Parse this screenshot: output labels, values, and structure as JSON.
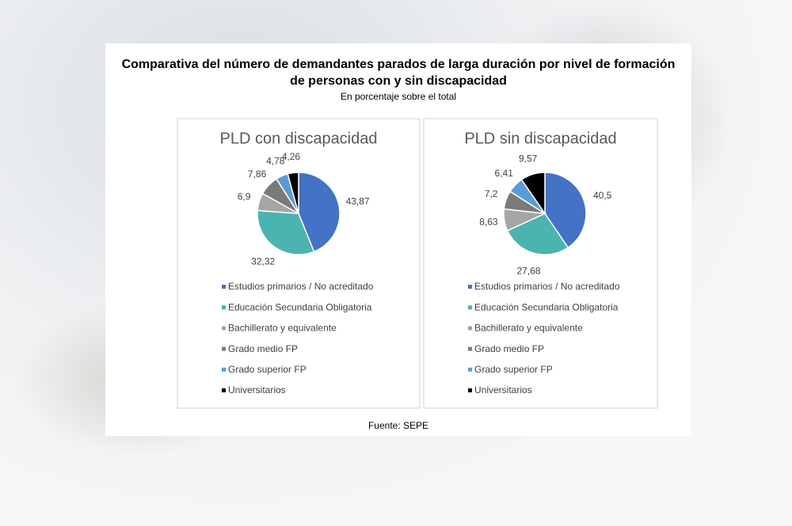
{
  "title": "Comparativa del número de demandantes parados de larga duración por nivel de formación de personas con y sin discapacidad",
  "subtitle": "En porcentaje sobre el total",
  "source": "Fuente: SEPE",
  "chart_data": [
    {
      "type": "pie",
      "title": "PLD con discapacidad",
      "categories": [
        "Estudios primarios / No acreditado",
        "Educación Secundaria Obligatoria",
        "Bachillerato y equivalente",
        "Grado medio FP",
        "Grado superior FP",
        "Universitarios"
      ],
      "values": [
        43.87,
        32.32,
        6.9,
        7.86,
        4.78,
        4.26
      ],
      "value_labels": [
        "43,87",
        "32,32",
        "6,9",
        "7,86",
        "4,78",
        "4,26"
      ],
      "colors": [
        "#4472c4",
        "#4bb3b0",
        "#a5a5a5",
        "#7a7a7a",
        "#5b9bd5",
        "#000000"
      ]
    },
    {
      "type": "pie",
      "title": "PLD sin discapacidad",
      "categories": [
        "Estudios primarios / No acreditado",
        "Educación Secundaria Obligatoria",
        "Bachillerato y equivalente",
        "Grado medio FP",
        "Grado superior FP",
        "Universitarios"
      ],
      "values": [
        40.5,
        27.68,
        8.63,
        7.2,
        6.41,
        9.57
      ],
      "value_labels": [
        "40,5",
        "27,68",
        "8,63",
        "7,2",
        "6,41",
        "9,57"
      ],
      "colors": [
        "#4472c4",
        "#4bb3b0",
        "#a5a5a5",
        "#7a7a7a",
        "#5b9bd5",
        "#000000"
      ]
    }
  ]
}
